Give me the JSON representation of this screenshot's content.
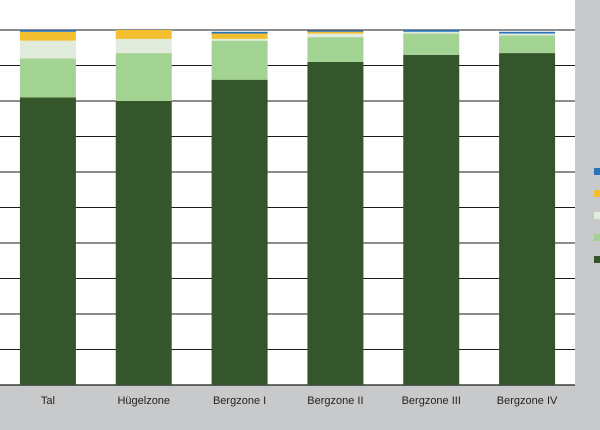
{
  "chart_data": {
    "type": "bar",
    "stacked": true,
    "orientation": "vertical",
    "categories": [
      "Tal",
      "Hügelzone",
      "Bergzone I",
      "Bergzone II",
      "Bergzone III",
      "Bergzone IV"
    ],
    "series": [
      {
        "color": "#35562b",
        "values": [
          81.0,
          80.0,
          86.0,
          91.0,
          93.0,
          93.5
        ]
      },
      {
        "color": "#a3d393",
        "values": [
          11.0,
          13.5,
          11.0,
          7.0,
          6.0,
          5.0
        ]
      },
      {
        "color": "#e1ecdd",
        "values": [
          5.0,
          4.0,
          0.5,
          1.0,
          0.5,
          0.5
        ]
      },
      {
        "color": "#f2bf2e",
        "values": [
          2.5,
          2.5,
          1.5,
          0.5,
          0.0,
          0.0
        ]
      },
      {
        "color": "#2b73b8",
        "values": [
          0.5,
          0.0,
          0.5,
          0.3,
          0.5,
          0.5
        ]
      }
    ],
    "ylim": [
      0,
      100
    ],
    "grid": true,
    "legend_position": "right",
    "title": "",
    "xlabel": "",
    "ylabel": ""
  }
}
